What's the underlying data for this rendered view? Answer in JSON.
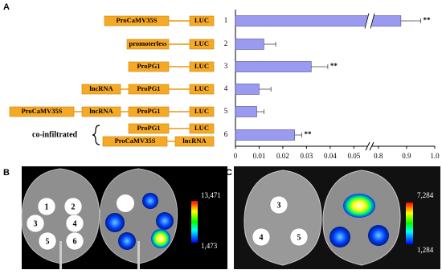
{
  "panel_labels": [
    "A",
    "B",
    "C"
  ],
  "constructs": [
    [
      "ProCaMV35S",
      "LUC"
    ],
    [
      "promoterless",
      "LUC"
    ],
    [
      "ProPG1",
      "LUC"
    ],
    [
      "lncRNA",
      "ProPG1",
      "LUC"
    ],
    [
      "ProCaMV35S",
      "lncRNA",
      "ProPG1",
      "LUC"
    ],
    [
      "ProPG1",
      "LUC"
    ],
    [
      "ProCaMV35S",
      "lncRNA"
    ]
  ],
  "co_infiltrated": "co-infiltrated",
  "chart_data": {
    "type": "bar",
    "orientation": "horizontal",
    "categories": [
      "1",
      "2",
      "3",
      "4",
      "5",
      "6"
    ],
    "values": [
      0.88,
      0.012,
      0.032,
      0.01,
      0.009,
      0.025
    ],
    "errors": [
      0.07,
      0.005,
      0.007,
      0.005,
      0.003,
      0.003
    ],
    "significance": [
      "**",
      null,
      "**",
      null,
      null,
      "**"
    ],
    "color": "#9a9af0",
    "xlim": [
      0,
      1.0
    ],
    "xbreak": [
      0.056,
      0.775
    ],
    "xticks": [
      0,
      0.01,
      0.02,
      0.03,
      0.04,
      0.05,
      0.8,
      0.9,
      {
        "value": 1,
        "label": "1.0"
      }
    ]
  },
  "images": {
    "B": {
      "spots": [
        "1",
        "2",
        "3",
        "4",
        "5",
        "6"
      ],
      "colorbar_max": "13,471",
      "colorbar_min": "1,473"
    },
    "C": {
      "spots": [
        "3",
        "4",
        "5"
      ],
      "colorbar_max": "7,284",
      "colorbar_min": "1,284"
    }
  }
}
